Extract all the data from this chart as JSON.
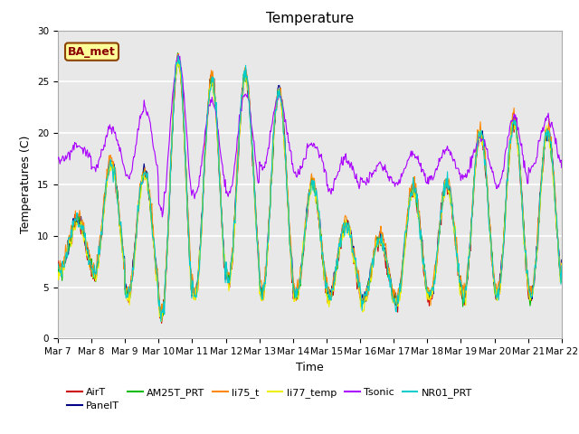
{
  "title": "Temperature",
  "ylabel": "Temperatures (C)",
  "xlabel": "Time",
  "ylim": [
    0,
    30
  ],
  "xlim": [
    0,
    360
  ],
  "x_tick_labels": [
    "Mar 7",
    "Mar 8",
    "Mar 9",
    "Mar 10",
    "Mar 11",
    "Mar 12",
    "Mar 13",
    "Mar 14",
    "Mar 15",
    "Mar 16",
    "Mar 17",
    "Mar 18",
    "Mar 19",
    "Mar 20",
    "Mar 21",
    "Mar 22"
  ],
  "x_tick_positions": [
    0,
    24,
    48,
    72,
    96,
    120,
    144,
    168,
    192,
    216,
    240,
    264,
    288,
    312,
    336,
    360
  ],
  "annotation": "BA_met",
  "series_colors": {
    "AirT": "#cc0000",
    "PanelT": "#00008b",
    "AM25T_PRT": "#00bb00",
    "li75_t": "#ff8800",
    "li77_temp": "#eeee00",
    "Tsonic": "#aa00ff",
    "NR01_PRT": "#00cccc"
  },
  "background_color": "#e8e8e8",
  "figure_color": "#ffffff",
  "title_fontsize": 11,
  "label_fontsize": 9,
  "tick_fontsize": 7.5
}
